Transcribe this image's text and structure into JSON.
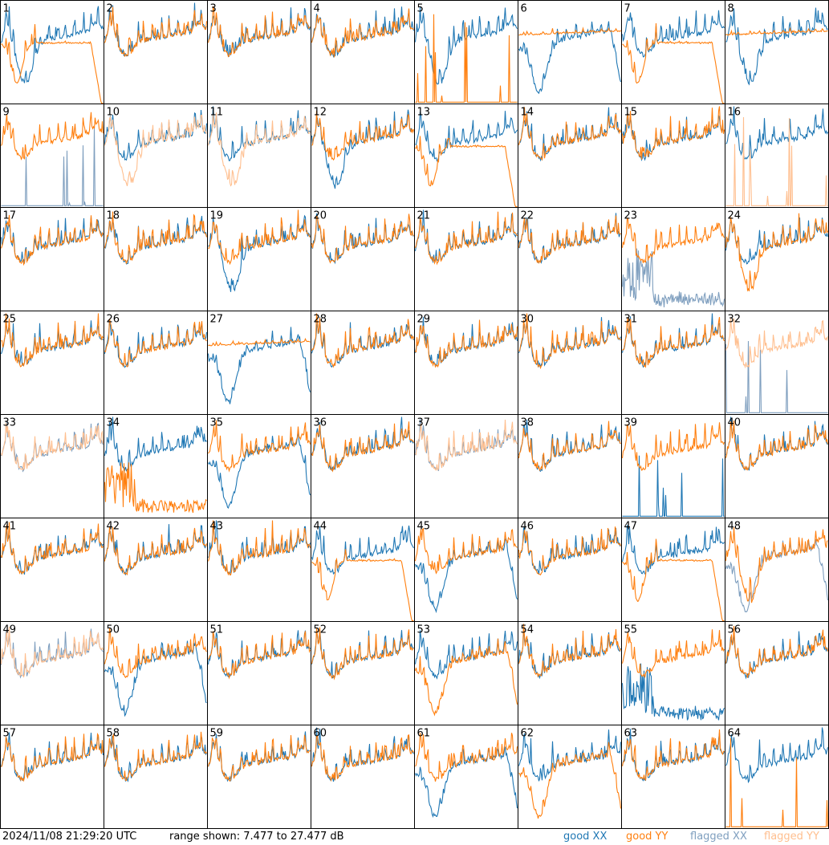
{
  "footer": {
    "timestamp": "2024/11/08 21:29:20 UTC",
    "range": "range shown: 7.477 to 27.477 dB"
  },
  "legend": {
    "good_xx": "good XX",
    "good_yy": "good YY",
    "flagged_xx": "flagged XX",
    "flagged_yy": "flagged YY"
  },
  "colors": {
    "good_xx": "#1f77b4",
    "good_yy": "#ff7f0e",
    "flagged_xx": "#7f9fbf",
    "flagged_yy": "#ffbf8f"
  },
  "chart_data": {
    "type": "line",
    "grid": {
      "rows": 8,
      "cols": 8
    },
    "y_range_db": [
      7.477,
      27.477
    ],
    "x_ticks_shown": false,
    "y_ticks_shown": false,
    "panels": [
      {
        "id": 1,
        "xx": "good",
        "yy": "good",
        "xx_shape": "dip",
        "yy_shape": "dip_smooth"
      },
      {
        "id": 2,
        "xx": "good",
        "yy": "good",
        "xx_shape": "normal",
        "yy_shape": "normal"
      },
      {
        "id": 3,
        "xx": "good",
        "yy": "good",
        "xx_shape": "normal",
        "yy_shape": "normal"
      },
      {
        "id": 4,
        "xx": "good",
        "yy": "good",
        "xx_shape": "normal",
        "yy_shape": "normal"
      },
      {
        "id": 5,
        "xx": "good",
        "yy": "good",
        "xx_shape": "dip",
        "yy_shape": "dead"
      },
      {
        "id": 6,
        "xx": "good",
        "yy": "good",
        "xx_shape": "dip_deep",
        "yy_shape": "smooth_high"
      },
      {
        "id": 7,
        "xx": "good",
        "yy": "good",
        "xx_shape": "normal",
        "yy_shape": "dip_smooth"
      },
      {
        "id": 8,
        "xx": "good",
        "yy": "good",
        "xx_shape": "dip",
        "yy_shape": "smooth_high"
      },
      {
        "id": 9,
        "xx": "flagged",
        "yy": "good",
        "xx_shape": "dead",
        "yy_shape": "normal"
      },
      {
        "id": 10,
        "xx": "good",
        "yy": "flagged",
        "xx_shape": "normal",
        "yy_shape": "dip"
      },
      {
        "id": 11,
        "xx": "good",
        "yy": "flagged",
        "xx_shape": "normal",
        "yy_shape": "dip"
      },
      {
        "id": 12,
        "xx": "good",
        "yy": "good",
        "xx_shape": "dip",
        "yy_shape": "normal"
      },
      {
        "id": 13,
        "xx": "good",
        "yy": "good",
        "xx_shape": "normal",
        "yy_shape": "dip_smooth"
      },
      {
        "id": 14,
        "xx": "good",
        "yy": "good",
        "xx_shape": "normal",
        "yy_shape": "normal"
      },
      {
        "id": 15,
        "xx": "good",
        "yy": "good",
        "xx_shape": "normal",
        "yy_shape": "normal"
      },
      {
        "id": 16,
        "xx": "good",
        "yy": "flagged",
        "xx_shape": "normal",
        "yy_shape": "dead"
      },
      {
        "id": 17,
        "xx": "good",
        "yy": "good",
        "xx_shape": "normal",
        "yy_shape": "normal"
      },
      {
        "id": 18,
        "xx": "good",
        "yy": "good",
        "xx_shape": "normal",
        "yy_shape": "normal"
      },
      {
        "id": 19,
        "xx": "good",
        "yy": "good",
        "xx_shape": "dip",
        "yy_shape": "normal"
      },
      {
        "id": 20,
        "xx": "good",
        "yy": "good",
        "xx_shape": "normal",
        "yy_shape": "normal"
      },
      {
        "id": 21,
        "xx": "good",
        "yy": "good",
        "xx_shape": "normal",
        "yy_shape": "normal"
      },
      {
        "id": 22,
        "xx": "good",
        "yy": "good",
        "xx_shape": "normal",
        "yy_shape": "normal"
      },
      {
        "id": 23,
        "xx": "flagged",
        "yy": "good",
        "xx_shape": "noisy_low",
        "yy_shape": "normal"
      },
      {
        "id": 24,
        "xx": "good",
        "yy": "good",
        "xx_shape": "normal",
        "yy_shape": "dip"
      },
      {
        "id": 25,
        "xx": "good",
        "yy": "good",
        "xx_shape": "normal",
        "yy_shape": "normal"
      },
      {
        "id": 26,
        "xx": "good",
        "yy": "good",
        "xx_shape": "normal",
        "yy_shape": "normal"
      },
      {
        "id": 27,
        "xx": "good",
        "yy": "good",
        "xx_shape": "dip_deep",
        "yy_shape": "smooth_high"
      },
      {
        "id": 28,
        "xx": "good",
        "yy": "good",
        "xx_shape": "normal",
        "yy_shape": "normal"
      },
      {
        "id": 29,
        "xx": "good",
        "yy": "good",
        "xx_shape": "normal",
        "yy_shape": "normal"
      },
      {
        "id": 30,
        "xx": "good",
        "yy": "good",
        "xx_shape": "normal",
        "yy_shape": "normal"
      },
      {
        "id": 31,
        "xx": "good",
        "yy": "good",
        "xx_shape": "normal",
        "yy_shape": "normal"
      },
      {
        "id": 32,
        "xx": "flagged",
        "yy": "flagged",
        "xx_shape": "dead",
        "yy_shape": "normal"
      },
      {
        "id": 33,
        "xx": "flagged",
        "yy": "flagged",
        "xx_shape": "normal",
        "yy_shape": "normal"
      },
      {
        "id": 34,
        "xx": "good",
        "yy": "good",
        "xx_shape": "normal",
        "yy_shape": "noisy_low"
      },
      {
        "id": 35,
        "xx": "good",
        "yy": "good",
        "xx_shape": "dip_deep",
        "yy_shape": "normal"
      },
      {
        "id": 36,
        "xx": "good",
        "yy": "good",
        "xx_shape": "normal",
        "yy_shape": "normal"
      },
      {
        "id": 37,
        "xx": "flagged",
        "yy": "flagged",
        "xx_shape": "normal",
        "yy_shape": "normal"
      },
      {
        "id": 38,
        "xx": "good",
        "yy": "good",
        "xx_shape": "normal",
        "yy_shape": "normal"
      },
      {
        "id": 39,
        "xx": "good",
        "yy": "good",
        "xx_shape": "dead",
        "yy_shape": "normal"
      },
      {
        "id": 40,
        "xx": "good",
        "yy": "good",
        "xx_shape": "normal",
        "yy_shape": "normal"
      },
      {
        "id": 41,
        "xx": "good",
        "yy": "good",
        "xx_shape": "normal",
        "yy_shape": "normal"
      },
      {
        "id": 42,
        "xx": "good",
        "yy": "good",
        "xx_shape": "normal",
        "yy_shape": "normal"
      },
      {
        "id": 43,
        "xx": "good",
        "yy": "good",
        "xx_shape": "normal",
        "yy_shape": "normal"
      },
      {
        "id": 44,
        "xx": "good",
        "yy": "good",
        "xx_shape": "normal",
        "yy_shape": "dip_smooth"
      },
      {
        "id": 45,
        "xx": "good",
        "yy": "good",
        "xx_shape": "dip_deep",
        "yy_shape": "normal"
      },
      {
        "id": 46,
        "xx": "good",
        "yy": "good",
        "xx_shape": "normal",
        "yy_shape": "normal"
      },
      {
        "id": 47,
        "xx": "good",
        "yy": "good",
        "xx_shape": "normal",
        "yy_shape": "dip_smooth"
      },
      {
        "id": 48,
        "xx": "flagged",
        "yy": "good",
        "xx_shape": "dip_deep",
        "yy_shape": "dip"
      },
      {
        "id": 49,
        "xx": "flagged",
        "yy": "flagged",
        "xx_shape": "normal",
        "yy_shape": "normal"
      },
      {
        "id": 50,
        "xx": "good",
        "yy": "good",
        "xx_shape": "dip_deep",
        "yy_shape": "normal"
      },
      {
        "id": 51,
        "xx": "good",
        "yy": "good",
        "xx_shape": "normal",
        "yy_shape": "normal"
      },
      {
        "id": 52,
        "xx": "good",
        "yy": "good",
        "xx_shape": "normal",
        "yy_shape": "normal"
      },
      {
        "id": 53,
        "xx": "good",
        "yy": "good",
        "xx_shape": "normal",
        "yy_shape": "dip_deep"
      },
      {
        "id": 54,
        "xx": "good",
        "yy": "good",
        "xx_shape": "normal",
        "yy_shape": "normal"
      },
      {
        "id": 55,
        "xx": "good",
        "yy": "good",
        "xx_shape": "noisy_low",
        "yy_shape": "normal"
      },
      {
        "id": 56,
        "xx": "good",
        "yy": "good",
        "xx_shape": "normal",
        "yy_shape": "normal"
      },
      {
        "id": 57,
        "xx": "good",
        "yy": "good",
        "xx_shape": "normal",
        "yy_shape": "normal"
      },
      {
        "id": 58,
        "xx": "good",
        "yy": "good",
        "xx_shape": "normal",
        "yy_shape": "normal"
      },
      {
        "id": 59,
        "xx": "good",
        "yy": "good",
        "xx_shape": "normal",
        "yy_shape": "normal"
      },
      {
        "id": 60,
        "xx": "good",
        "yy": "good",
        "xx_shape": "normal",
        "yy_shape": "normal"
      },
      {
        "id": 61,
        "xx": "good",
        "yy": "good",
        "xx_shape": "dip_deep",
        "yy_shape": "normal"
      },
      {
        "id": 62,
        "xx": "good",
        "yy": "good",
        "xx_shape": "normal",
        "yy_shape": "dip_deep"
      },
      {
        "id": 63,
        "xx": "good",
        "yy": "good",
        "xx_shape": "normal",
        "yy_shape": "normal"
      },
      {
        "id": 64,
        "xx": "good",
        "yy": "good",
        "xx_shape": "normal",
        "yy_shape": "dead"
      }
    ]
  }
}
